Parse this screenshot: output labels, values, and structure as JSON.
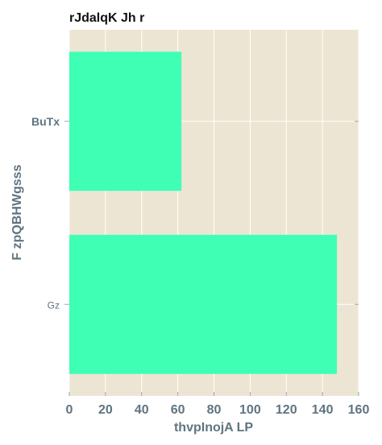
{
  "chart_data": {
    "type": "bar",
    "orientation": "horizontal",
    "title": "rJdalqK Jh  r",
    "xlabel": "thvpInojA LP",
    "ylabel": "F zpQBHWgsss",
    "categories": [
      "BuTx",
      "Gz"
    ],
    "values": [
      62,
      148
    ],
    "xlim": [
      0,
      160
    ],
    "xticks": [
      0,
      20,
      40,
      60,
      80,
      100,
      120,
      140,
      160
    ],
    "grid": true,
    "colors": {
      "bar": "#3effb4",
      "plot_background": "#ede5d3",
      "grid": "#ffffff",
      "axis_text": "#5f7480"
    }
  }
}
